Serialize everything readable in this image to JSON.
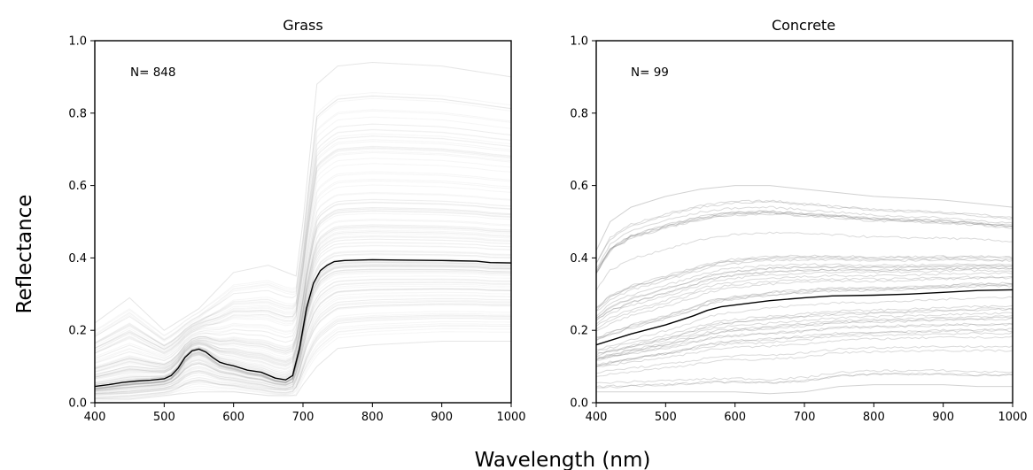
{
  "figure": {
    "xlabel": "Wavelength (nm)",
    "ylabel": "Reflectance"
  },
  "chart_data": [
    {
      "type": "line",
      "title": "Grass",
      "annotation": "N= 848",
      "xlim": [
        400,
        1000
      ],
      "ylim": [
        0.0,
        1.0
      ],
      "xticks": [
        "400",
        "500",
        "600",
        "700",
        "800",
        "900",
        "1000"
      ],
      "yticks": [
        "0.0",
        "0.2",
        "0.4",
        "0.6",
        "0.8",
        "1.0"
      ],
      "grid": false,
      "mean": {
        "x": [
          400,
          420,
          440,
          460,
          480,
          500,
          510,
          520,
          530,
          540,
          550,
          560,
          570,
          580,
          590,
          600,
          620,
          640,
          660,
          675,
          685,
          695,
          705,
          715,
          725,
          735,
          745,
          760,
          800,
          850,
          900,
          950,
          970,
          1000
        ],
        "y": [
          0.045,
          0.05,
          0.056,
          0.06,
          0.062,
          0.066,
          0.075,
          0.095,
          0.125,
          0.143,
          0.148,
          0.14,
          0.125,
          0.112,
          0.106,
          0.102,
          0.09,
          0.084,
          0.068,
          0.063,
          0.075,
          0.15,
          0.26,
          0.33,
          0.365,
          0.38,
          0.39,
          0.393,
          0.395,
          0.394,
          0.393,
          0.391,
          0.387,
          0.386
        ]
      },
      "envelope": {
        "x": [
          400,
          450,
          500,
          550,
          600,
          650,
          690,
          700,
          720,
          750,
          800,
          900,
          1000
        ],
        "min": [
          0.01,
          0.01,
          0.02,
          0.03,
          0.03,
          0.02,
          0.02,
          0.05,
          0.1,
          0.15,
          0.16,
          0.17,
          0.17
        ],
        "max": [
          0.22,
          0.29,
          0.2,
          0.26,
          0.36,
          0.38,
          0.35,
          0.5,
          0.88,
          0.93,
          0.94,
          0.93,
          0.9
        ]
      }
    },
    {
      "type": "line",
      "title": "Concrete",
      "annotation": "N= 99",
      "xlim": [
        400,
        1000
      ],
      "ylim": [
        0.0,
        1.0
      ],
      "xticks": [
        "400",
        "500",
        "600",
        "700",
        "800",
        "900",
        "1000"
      ],
      "yticks": [
        "0.0",
        "0.2",
        "0.4",
        "0.6",
        "0.8",
        "1.0"
      ],
      "grid": false,
      "mean": {
        "x": [
          400,
          450,
          500,
          540,
          560,
          580,
          600,
          650,
          700,
          740,
          800,
          850,
          900,
          950,
          1000
        ],
        "y": [
          0.16,
          0.19,
          0.215,
          0.24,
          0.255,
          0.265,
          0.27,
          0.282,
          0.29,
          0.295,
          0.297,
          0.3,
          0.305,
          0.31,
          0.312
        ]
      },
      "envelope": {
        "x": [
          400,
          420,
          450,
          500,
          550,
          600,
          650,
          700,
          750,
          800,
          850,
          900,
          950,
          1000
        ],
        "min": [
          0.03,
          0.03,
          0.03,
          0.03,
          0.03,
          0.03,
          0.025,
          0.03,
          0.045,
          0.05,
          0.05,
          0.05,
          0.045,
          0.045
        ],
        "max": [
          0.42,
          0.5,
          0.54,
          0.57,
          0.59,
          0.6,
          0.6,
          0.59,
          0.58,
          0.57,
          0.565,
          0.56,
          0.55,
          0.54
        ]
      }
    }
  ]
}
